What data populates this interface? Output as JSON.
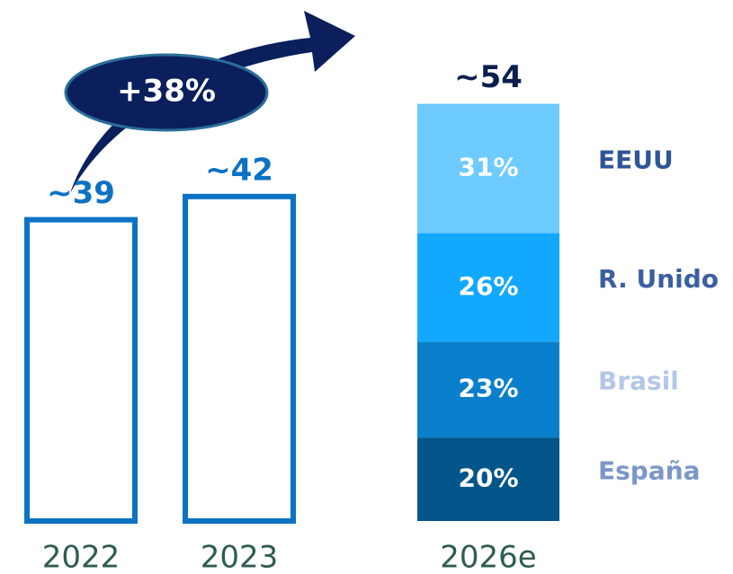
{
  "chart_data": {
    "type": "bar",
    "categories": [
      "2022",
      "2023",
      "2026e"
    ],
    "values": [
      39,
      42,
      54
    ],
    "value_labels": [
      "~39",
      "~42",
      "~54"
    ],
    "color": "#0b72c4",
    "annotation": "+38%",
    "stack": {
      "names": [
        "España",
        "Brasil",
        "R. Unido",
        "EEUU"
      ],
      "values": [
        20,
        23,
        26,
        31
      ],
      "value_labels": [
        "20%",
        "23%",
        "26%",
        "31%"
      ],
      "colors": [
        "#03568a",
        "#0a80cc",
        "#12a8ff",
        "#6ecbff"
      ],
      "label_colors": [
        "#7b96c8",
        "#b4c7e7",
        "#3a5fa0",
        "#2f5597"
      ]
    }
  }
}
